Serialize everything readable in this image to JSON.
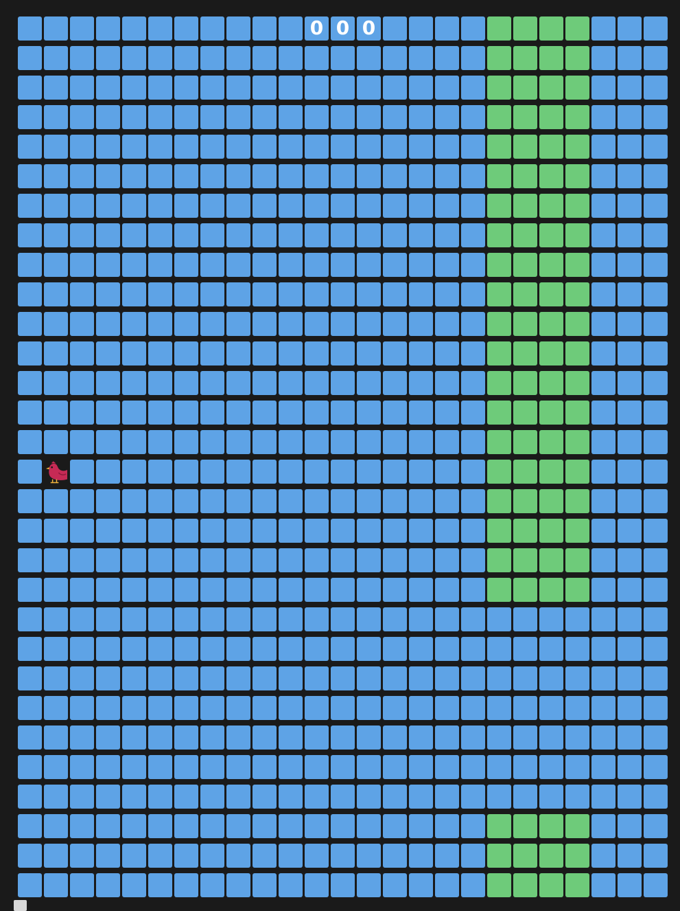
{
  "game": {
    "columns": 25,
    "rows": 30,
    "score": "000",
    "score_start_col": 11,
    "colors": {
      "background": "#1a1a1a",
      "sky": "#5ea3e6",
      "pipe": "#6ecb7a",
      "bird": "#c62a55",
      "bird_beak": "#f1b33c",
      "marker": "#d8d8d8"
    },
    "pipe": {
      "start_col": 18,
      "width": 4,
      "top_end_row": 19,
      "gap_rows": [
        20,
        21,
        22,
        23,
        24,
        25,
        26
      ],
      "bottom_start_row": 27
    },
    "bird": {
      "row": 15,
      "col": 1,
      "icon": "bird-icon"
    }
  }
}
